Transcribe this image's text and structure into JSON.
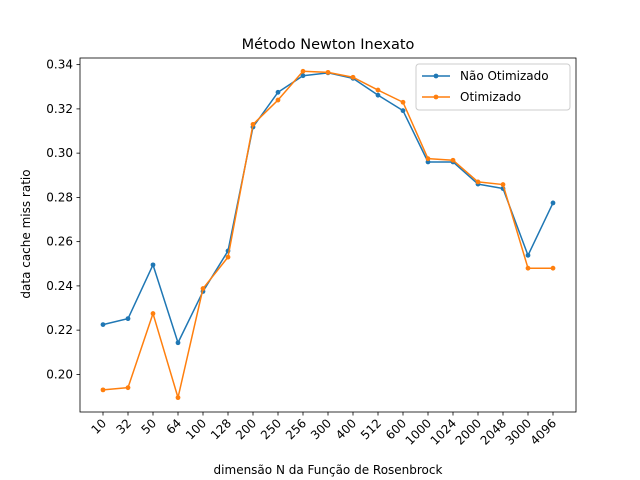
{
  "chart_data": {
    "type": "line",
    "title": "Método Newton Inexato",
    "xlabel": "dimensão N da Função de Rosenbrock",
    "ylabel": "data cache miss ratio",
    "categories": [
      "10",
      "32",
      "50",
      "64",
      "100",
      "128",
      "200",
      "250",
      "256",
      "300",
      "400",
      "512",
      "600",
      "1000",
      "1024",
      "2000",
      "2048",
      "3000",
      "4096"
    ],
    "ylim": [
      0.183,
      0.343
    ],
    "yticks": [
      0.2,
      0.22,
      0.24,
      0.26,
      0.28,
      0.3,
      0.32,
      0.34
    ],
    "ytick_labels": [
      "0.20",
      "0.22",
      "0.24",
      "0.26",
      "0.28",
      "0.30",
      "0.32",
      "0.34"
    ],
    "grid": false,
    "legend_position": "top-right",
    "series": [
      {
        "name": "Não Otimizado",
        "color": "#1f77b4",
        "marker": "circle",
        "values": [
          0.2225,
          0.2252,
          0.2495,
          0.2143,
          0.2375,
          0.2558,
          0.3118,
          0.3275,
          0.335,
          0.3363,
          0.3338,
          0.3262,
          0.3192,
          0.296,
          0.296,
          0.286,
          0.284,
          0.2538,
          0.2775
        ]
      },
      {
        "name": "Otimizado",
        "color": "#ff7f0e",
        "marker": "circle",
        "values": [
          0.193,
          0.194,
          0.2275,
          0.1895,
          0.2388,
          0.253,
          0.313,
          0.324,
          0.337,
          0.3365,
          0.3343,
          0.3285,
          0.323,
          0.2975,
          0.2968,
          0.287,
          0.2858,
          0.248,
          0.248
        ]
      }
    ]
  }
}
